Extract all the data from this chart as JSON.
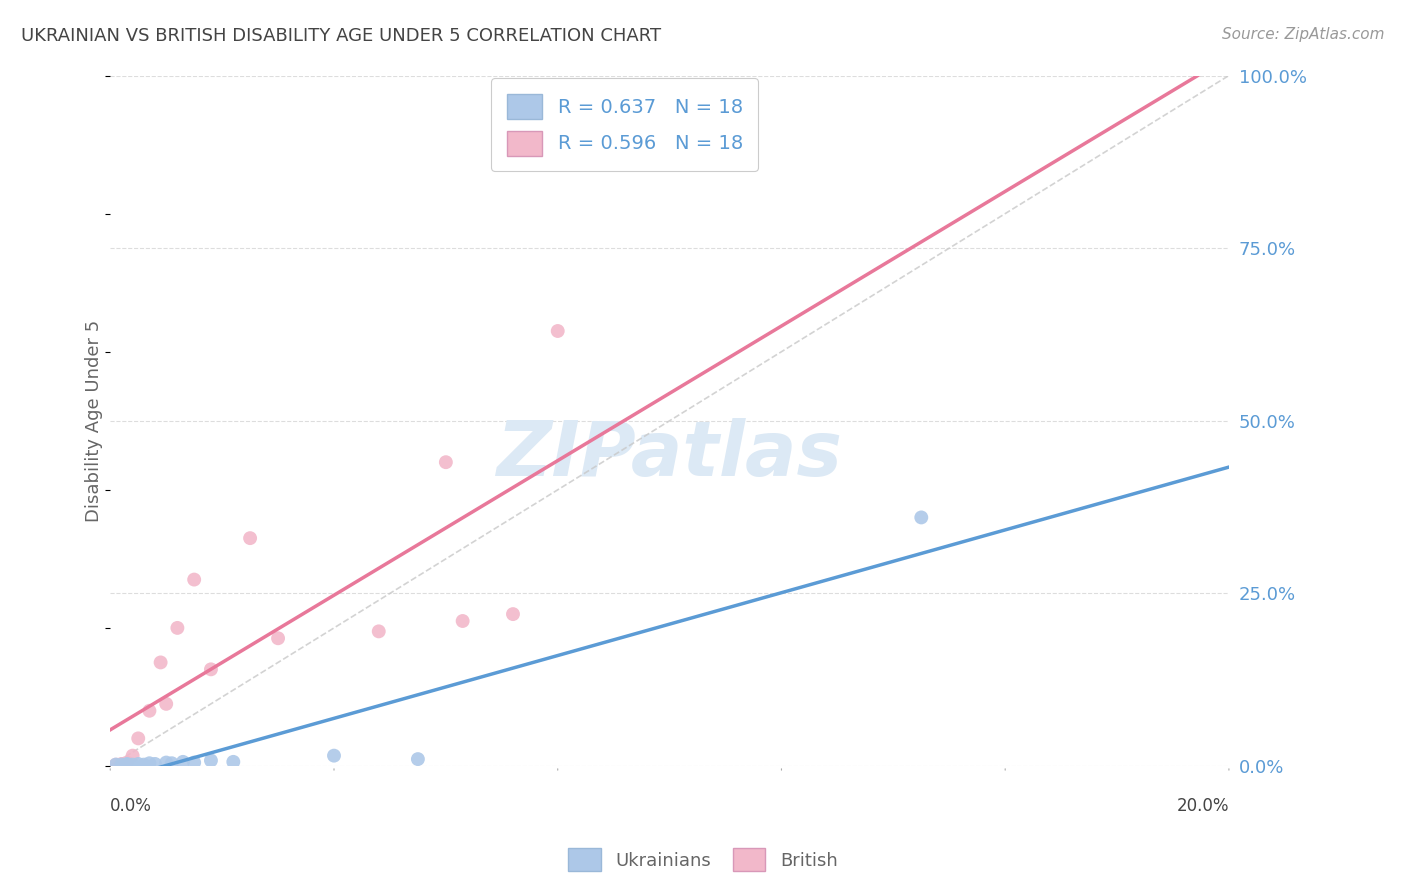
{
  "title": "UKRAINIAN VS BRITISH DISABILITY AGE UNDER 5 CORRELATION CHART",
  "source": "Source: ZipAtlas.com",
  "ylabel": "Disability Age Under 5",
  "ukrainian_R": 0.637,
  "british_R": 0.596,
  "N": 18,
  "ukrainian_color": "#adc8e8",
  "british_color": "#f2b8ca",
  "ukrainian_line_color": "#5b9bd5",
  "british_line_color": "#e8789a",
  "diag_line_color": "#c8c8c8",
  "grid_color": "#dddddd",
  "background_color": "#ffffff",
  "title_color": "#444444",
  "source_color": "#999999",
  "axis_label_color": "#666666",
  "right_tick_color": "#5b9bd5",
  "bottom_tick_color": "#444444",
  "ukrainians_x": [
    0.001,
    0.002,
    0.003,
    0.003,
    0.004,
    0.005,
    0.006,
    0.007,
    0.008,
    0.01,
    0.011,
    0.013,
    0.015,
    0.018,
    0.022,
    0.04,
    0.055,
    0.145
  ],
  "ukrainians_y": [
    0.002,
    0.002,
    0.002,
    0.003,
    0.002,
    0.003,
    0.002,
    0.004,
    0.003,
    0.005,
    0.004,
    0.006,
    0.005,
    0.008,
    0.006,
    0.015,
    0.01,
    0.36
  ],
  "british_x": [
    0.001,
    0.002,
    0.003,
    0.004,
    0.005,
    0.007,
    0.009,
    0.01,
    0.012,
    0.015,
    0.018,
    0.025,
    0.03,
    0.048,
    0.06,
    0.063,
    0.072,
    0.08
  ],
  "british_y": [
    0.002,
    0.003,
    0.005,
    0.015,
    0.04,
    0.08,
    0.15,
    0.09,
    0.2,
    0.27,
    0.14,
    0.33,
    0.185,
    0.195,
    0.44,
    0.21,
    0.22,
    0.63
  ],
  "watermark_text": "ZIPatlas",
  "watermark_color": "#dce9f5",
  "marker_size": 100,
  "xmax": 0.2,
  "ymax": 1.0,
  "x_tick_positions": [
    0.0,
    0.04,
    0.08,
    0.12,
    0.16,
    0.2
  ],
  "y_tick_positions": [
    0.0,
    0.25,
    0.5,
    0.75,
    1.0
  ],
  "y_tick_labels": [
    "0.0%",
    "25.0%",
    "50.0%",
    "75.0%",
    "100.0%"
  ],
  "legend_label_ukr": "R = 0.637   N = 18",
  "legend_label_brit": "R = 0.596   N = 18",
  "bottom_legend_ukr": "Ukrainians",
  "bottom_legend_brit": "British"
}
